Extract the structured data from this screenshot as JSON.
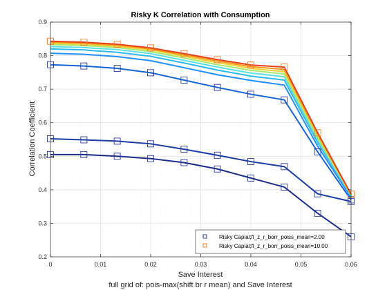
{
  "chart_data": {
    "type": "line",
    "title": "Risky K Correlation with Consumption",
    "xlabel": "Save Interest",
    "ylabel": "Correlation Coefficient",
    "caption": "full grid of: pois-max(shift br r mean) and Save Interest",
    "xlim": [
      0,
      0.06
    ],
    "ylim": [
      0.2,
      0.9
    ],
    "xticks": [
      "0",
      "0.01",
      "0.02",
      "0.03",
      "0.04",
      "0.05",
      "0.06"
    ],
    "yticks": [
      "0.2",
      "0.3",
      "0.4",
      "0.5",
      "0.6",
      "0.7",
      "0.8",
      "0.9"
    ],
    "grid": true,
    "legend_position": "bottom-right",
    "x": [
      0,
      0.00667,
      0.01333,
      0.02,
      0.02667,
      0.03333,
      0.04,
      0.04667,
      0.05333,
      0.06
    ],
    "series": [
      {
        "color": "#1a2b8c",
        "marker": true,
        "legend": "Risky Capial;fl_z_r_borr_poiss_mean=2.00",
        "values": [
          0.505,
          0.505,
          0.5,
          0.493,
          0.481,
          0.462,
          0.435,
          0.408,
          0.33,
          0.26
        ]
      },
      {
        "color": "#1a3aa6",
        "marker": true,
        "values": [
          0.552,
          0.549,
          0.545,
          0.537,
          0.521,
          0.503,
          0.484,
          0.469,
          0.388,
          0.365
        ]
      },
      {
        "color": "#1565d8",
        "marker": true,
        "values": [
          0.773,
          0.769,
          0.762,
          0.749,
          0.727,
          0.705,
          0.685,
          0.668,
          0.513,
          0.37
        ]
      },
      {
        "color": "#1f8fff",
        "marker": false,
        "values": [
          0.807,
          0.804,
          0.797,
          0.785,
          0.764,
          0.743,
          0.726,
          0.712,
          0.53,
          0.377
        ]
      },
      {
        "color": "#2ab8f0",
        "marker": false,
        "values": [
          0.82,
          0.817,
          0.81,
          0.798,
          0.778,
          0.757,
          0.739,
          0.727,
          0.541,
          0.381
        ]
      },
      {
        "color": "#5ee0e0",
        "marker": false,
        "values": [
          0.827,
          0.824,
          0.818,
          0.806,
          0.786,
          0.766,
          0.748,
          0.737,
          0.548,
          0.383
        ]
      },
      {
        "color": "#a8e86a",
        "marker": false,
        "values": [
          0.833,
          0.83,
          0.824,
          0.812,
          0.793,
          0.773,
          0.756,
          0.745,
          0.555,
          0.384
        ]
      },
      {
        "color": "#f2d23a",
        "marker": false,
        "values": [
          0.837,
          0.834,
          0.828,
          0.817,
          0.798,
          0.779,
          0.762,
          0.752,
          0.561,
          0.385
        ]
      },
      {
        "color": "#f59a1a",
        "marker": false,
        "values": [
          0.84,
          0.837,
          0.831,
          0.82,
          0.802,
          0.784,
          0.767,
          0.759,
          0.566,
          0.386
        ]
      },
      {
        "color": "#e8401c",
        "marker": true,
        "legend": "Risky Capial;fl_z_r_borr_poiss_mean=10.00",
        "values": [
          0.843,
          0.84,
          0.834,
          0.823,
          0.806,
          0.788,
          0.772,
          0.766,
          0.57,
          0.387
        ]
      }
    ],
    "marker_colors": {
      "blue": "#2e3b9e",
      "orange": "#f07c2a"
    }
  }
}
